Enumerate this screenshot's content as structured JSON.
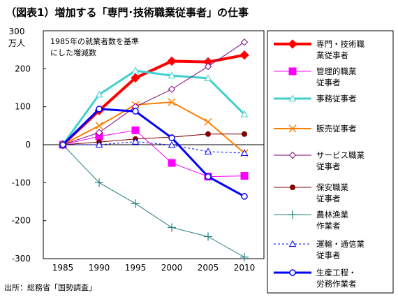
{
  "title": "（図表1）増加する「専門･技術職業従事者」の仕事",
  "source": "出所：総務省「国勢調査」",
  "chart_data": {
    "type": "line",
    "title": "（図表1）増加する「専門･技術職業従事者」の仕事",
    "subtitle_lines": [
      "1985年の就業者数を基準",
      "にした増減数"
    ],
    "ylabel_lines": [
      "300",
      "万人"
    ],
    "x": [
      1985,
      1990,
      1995,
      2000,
      2005,
      2010
    ],
    "ylim": [
      -300,
      300
    ],
    "yticks": [
      -300,
      -200,
      -100,
      0,
      100,
      200
    ],
    "grid": false,
    "legend_position": "right",
    "series": [
      {
        "name_lines": [
          "専門・技術職",
          "業従事者"
        ],
        "color": "#ff0000",
        "marker": "diamond-filled",
        "dash": false,
        "width": 4,
        "values": [
          0,
          90,
          176,
          220,
          218,
          236
        ]
      },
      {
        "name_lines": [
          "管理的職業",
          "従事者"
        ],
        "color": "#ff00ff",
        "marker": "square-filled",
        "dash": false,
        "width": 1,
        "values": [
          0,
          22,
          38,
          -48,
          -84,
          -82
        ]
      },
      {
        "name_lines": [
          "事務従事者"
        ],
        "color": "#40d0d0",
        "marker": "triangle-open",
        "dash": false,
        "width": 3,
        "values": [
          0,
          132,
          195,
          182,
          175,
          80
        ]
      },
      {
        "name_lines": [
          "販売従事者"
        ],
        "color": "#ff8000",
        "marker": "x",
        "dash": false,
        "width": 2,
        "values": [
          0,
          50,
          105,
          112,
          60,
          -22
        ]
      },
      {
        "name_lines": [
          "サービス職業",
          "従事者"
        ],
        "color": "#800080",
        "marker": "diamond-open",
        "dash": false,
        "width": 1,
        "values": [
          0,
          32,
          100,
          146,
          206,
          270
        ]
      },
      {
        "name_lines": [
          "保安職業",
          "従事者"
        ],
        "color": "#800000",
        "marker": "circle-filled",
        "dash": false,
        "width": 1,
        "values": [
          0,
          7,
          15,
          20,
          28,
          28
        ]
      },
      {
        "name_lines": [
          "農林漁業",
          "作業者"
        ],
        "color": "#208080",
        "marker": "plus",
        "dash": false,
        "width": 1,
        "values": [
          0,
          -100,
          -155,
          -218,
          -242,
          -296
        ]
      },
      {
        "name_lines": [
          "運輸・通信業",
          "従事者"
        ],
        "color": "#0000ff",
        "marker": "triangle-open",
        "dash": true,
        "width": 1,
        "values": [
          0,
          0,
          8,
          -1,
          -18,
          -22
        ]
      },
      {
        "name_lines": [
          "生産工程・",
          "労務作業者"
        ],
        "color": "#0000ff",
        "marker": "circle-open",
        "dash": false,
        "width": 3,
        "values": [
          0,
          94,
          88,
          18,
          -84,
          -136
        ]
      }
    ]
  }
}
